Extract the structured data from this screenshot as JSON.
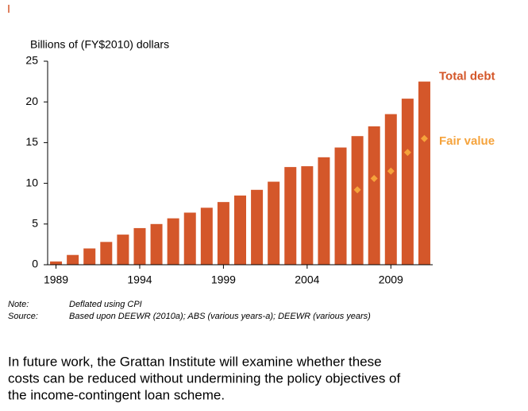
{
  "chart_data": {
    "type": "bar",
    "y_label": "Billions of (FY$2010) dollars",
    "categories": [
      "1989",
      null,
      null,
      null,
      null,
      "1994",
      null,
      null,
      null,
      null,
      "1999",
      null,
      null,
      null,
      null,
      "2004",
      null,
      null,
      null,
      null,
      "2009",
      null,
      null
    ],
    "series": [
      {
        "name": "Total debt",
        "color": "#d4572a",
        "type": "bar",
        "values": [
          0.4,
          1.2,
          2.0,
          2.8,
          3.7,
          4.5,
          5.0,
          5.7,
          6.4,
          7.0,
          7.7,
          8.5,
          9.2,
          10.2,
          12.0,
          12.1,
          13.2,
          14.4,
          15.8,
          17.0,
          18.5,
          20.4,
          22.5
        ]
      },
      {
        "name": "Fair value",
        "color": "#f5a33c",
        "type": "scatter",
        "values": [
          null,
          null,
          null,
          null,
          null,
          null,
          null,
          null,
          null,
          null,
          null,
          null,
          null,
          null,
          null,
          null,
          null,
          null,
          9.2,
          10.6,
          11.5,
          13.8,
          15.5
        ]
      }
    ],
    "ylim": [
      0,
      25
    ],
    "yticks": [
      0,
      5,
      10,
      15,
      20,
      25
    ],
    "grid": false,
    "note_label": "Note:",
    "note": "Deflated using CPI",
    "source_label": "Source:",
    "source": "Based upon DEEWR (2010a); ABS (various years-a); DEEWR (various years)"
  },
  "paragraph": [
    "In future work, the Grattan Institute will examine whether these",
    "costs can be reduced without undermining the policy objectives of",
    "the income-contingent loan scheme."
  ]
}
